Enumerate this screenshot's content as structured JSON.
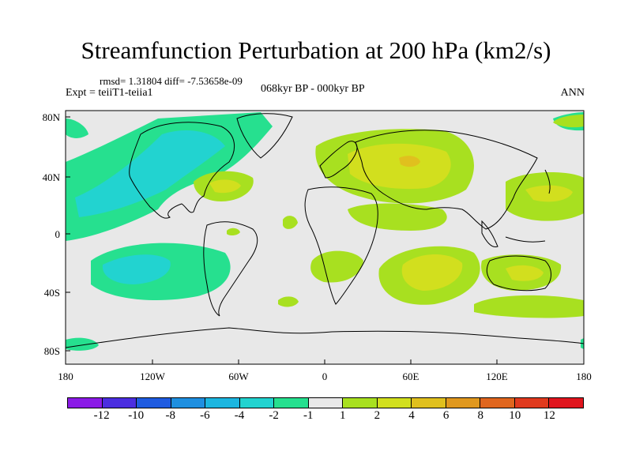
{
  "title": "Streamfunction Perturbation at 200 hPa (km2/s)",
  "stats": "rmsd= 1.31804 diff= -7.53658e-09",
  "experiment": "Expt = teiiT1-teiia1",
  "period": "068kyr BP - 000kyr BP",
  "season": "ANN",
  "lat_labels": [
    "80N",
    "40N",
    "0",
    "40S",
    "80S"
  ],
  "lon_labels": [
    "180",
    "120W",
    "60W",
    "0",
    "60E",
    "120E",
    "180"
  ],
  "colorbar": {
    "labels": [
      "-12",
      "-10",
      "-8",
      "-6",
      "-4",
      "-2",
      "-1",
      "1",
      "2",
      "4",
      "6",
      "8",
      "10",
      "12"
    ],
    "colors": [
      "#8b1be6",
      "#4b2ee0",
      "#1f5be0",
      "#1f8fe0",
      "#1cb6e0",
      "#22d3d0",
      "#26e08f",
      "#e8e8e8",
      "#a8e020",
      "#d2df1e",
      "#e0c01e",
      "#e0981e",
      "#e0661e",
      "#e03a1e",
      "#e0161e"
    ]
  },
  "map_colors": {
    "neutral": "#e8e8e8",
    "pos1": "#a8e020",
    "pos2": "#d2df1e",
    "pos3": "#e0c01e",
    "neg1": "#26e08f",
    "neg2": "#22d3d0",
    "neg3": "#1cb6e0"
  }
}
